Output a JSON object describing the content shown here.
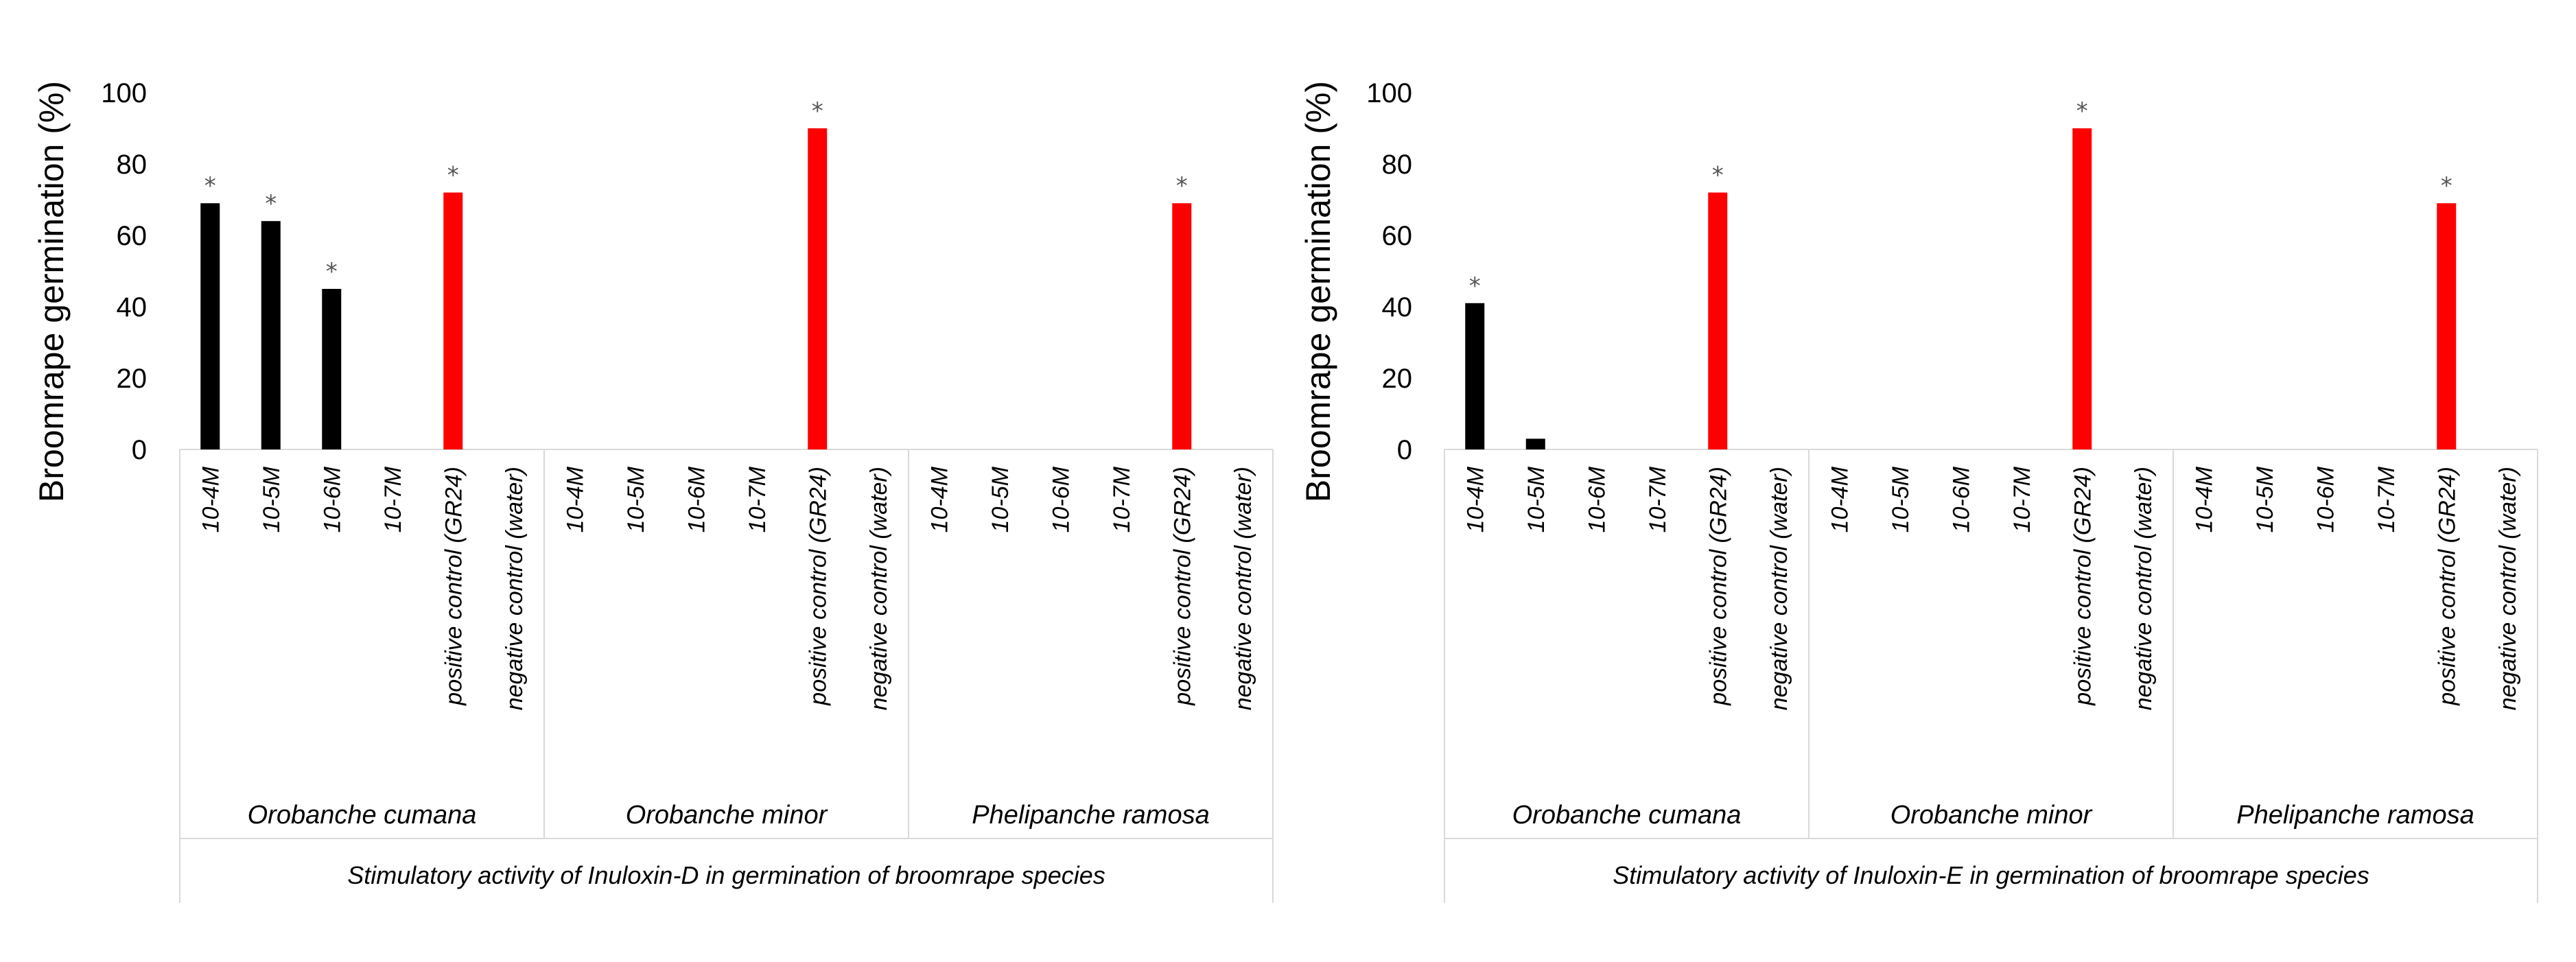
{
  "colors": {
    "treatment": "#000000",
    "positive_control": "#ff0000",
    "significance": "#555555",
    "frame": "#d9d9d9"
  },
  "chart_data": [
    {
      "type": "bar",
      "title": "",
      "ylabel": "Broomrape germination (%)",
      "xlabel": "Stimulatory activity of Inuloxin-D in germination of broomrape species",
      "ylim": [
        0,
        100
      ],
      "yticks": [
        "0",
        "20",
        "40",
        "60",
        "80",
        "100"
      ],
      "legend": "none",
      "groups": [
        {
          "name": "Orobanche cumana",
          "categories": [
            "10-4M",
            "10-5M",
            "10-6M",
            "10-7M",
            "positive control (GR24)",
            "negative control (water)"
          ],
          "values": [
            69,
            64,
            45,
            0,
            72,
            0
          ],
          "significant": [
            true,
            true,
            true,
            false,
            true,
            false
          ]
        },
        {
          "name": "Orobanche minor",
          "categories": [
            "10-4M",
            "10-5M",
            "10-6M",
            "10-7M",
            "positive control (GR24)",
            "negative control (water)"
          ],
          "values": [
            0,
            0,
            0,
            0,
            90,
            0
          ],
          "significant": [
            false,
            false,
            false,
            false,
            true,
            false
          ]
        },
        {
          "name": "Phelipanche ramosa",
          "categories": [
            "10-4M",
            "10-5M",
            "10-6M",
            "10-7M",
            "positive control (GR24)",
            "negative control (water)"
          ],
          "values": [
            0,
            0,
            0,
            0,
            69,
            0
          ],
          "significant": [
            false,
            false,
            false,
            false,
            true,
            false
          ]
        }
      ]
    },
    {
      "type": "bar",
      "title": "",
      "ylabel": "Broomrape germination (%)",
      "xlabel": "Stimulatory activity of Inuloxin-E in germination of broomrape species",
      "ylim": [
        0,
        100
      ],
      "yticks": [
        "0",
        "20",
        "40",
        "60",
        "80",
        "100"
      ],
      "legend": "none",
      "groups": [
        {
          "name": "Orobanche cumana",
          "categories": [
            "10-4M",
            "10-5M",
            "10-6M",
            "10-7M",
            "positive control (GR24)",
            "negative control (water)"
          ],
          "values": [
            41,
            3,
            0,
            0,
            72,
            0
          ],
          "significant": [
            true,
            false,
            false,
            false,
            true,
            false
          ]
        },
        {
          "name": "Orobanche minor",
          "categories": [
            "10-4M",
            "10-5M",
            "10-6M",
            "10-7M",
            "positive control (GR24)",
            "negative control (water)"
          ],
          "values": [
            0,
            0,
            0,
            0,
            90,
            0
          ],
          "significant": [
            false,
            false,
            false,
            false,
            true,
            false
          ]
        },
        {
          "name": "Phelipanche ramosa",
          "categories": [
            "10-4M",
            "10-5M",
            "10-6M",
            "10-7M",
            "positive control (GR24)",
            "negative control (water)"
          ],
          "values": [
            0,
            0,
            0,
            0,
            69,
            0
          ],
          "significant": [
            false,
            false,
            false,
            false,
            true,
            false
          ]
        }
      ]
    }
  ]
}
